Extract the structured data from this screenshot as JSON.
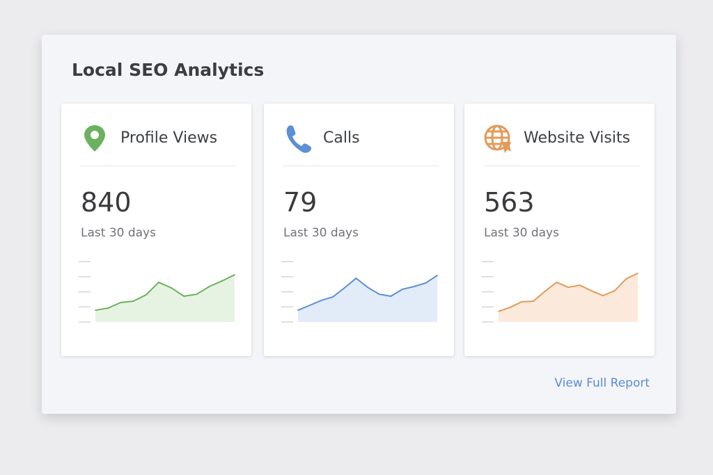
{
  "title": "Local SEO Analytics",
  "cards": [
    {
      "label": "Profile Views",
      "icon": "map-pin-icon",
      "value": "840",
      "period": "Last 30 days",
      "color": "#6bb15f",
      "fill": "#e6f3e2",
      "trend": [
        0.78,
        0.92,
        1.29,
        1.38,
        1.8,
        2.63,
        2.26,
        1.71,
        1.84,
        2.35,
        2.72,
        3.13
      ]
    },
    {
      "label": "Calls",
      "icon": "phone-icon",
      "value": "79",
      "period": "Last 30 days",
      "color": "#5b8fd6",
      "fill": "#e2ebf8",
      "trend": [
        0.78,
        1.1,
        1.43,
        1.66,
        2.26,
        2.9,
        2.3,
        1.84,
        1.71,
        2.17,
        2.35,
        2.58,
        3.09
      ]
    },
    {
      "label": "Website Visits",
      "icon": "globe-cursor-icon",
      "value": "563",
      "period": "Last 30 days",
      "color": "#e39a5a",
      "fill": "#fbeadb",
      "trend": [
        0.7,
        0.97,
        1.34,
        1.38,
        2.03,
        2.63,
        2.3,
        2.44,
        2.07,
        1.75,
        2.07,
        2.86,
        3.23
      ]
    }
  ],
  "link": "View Full Report"
}
